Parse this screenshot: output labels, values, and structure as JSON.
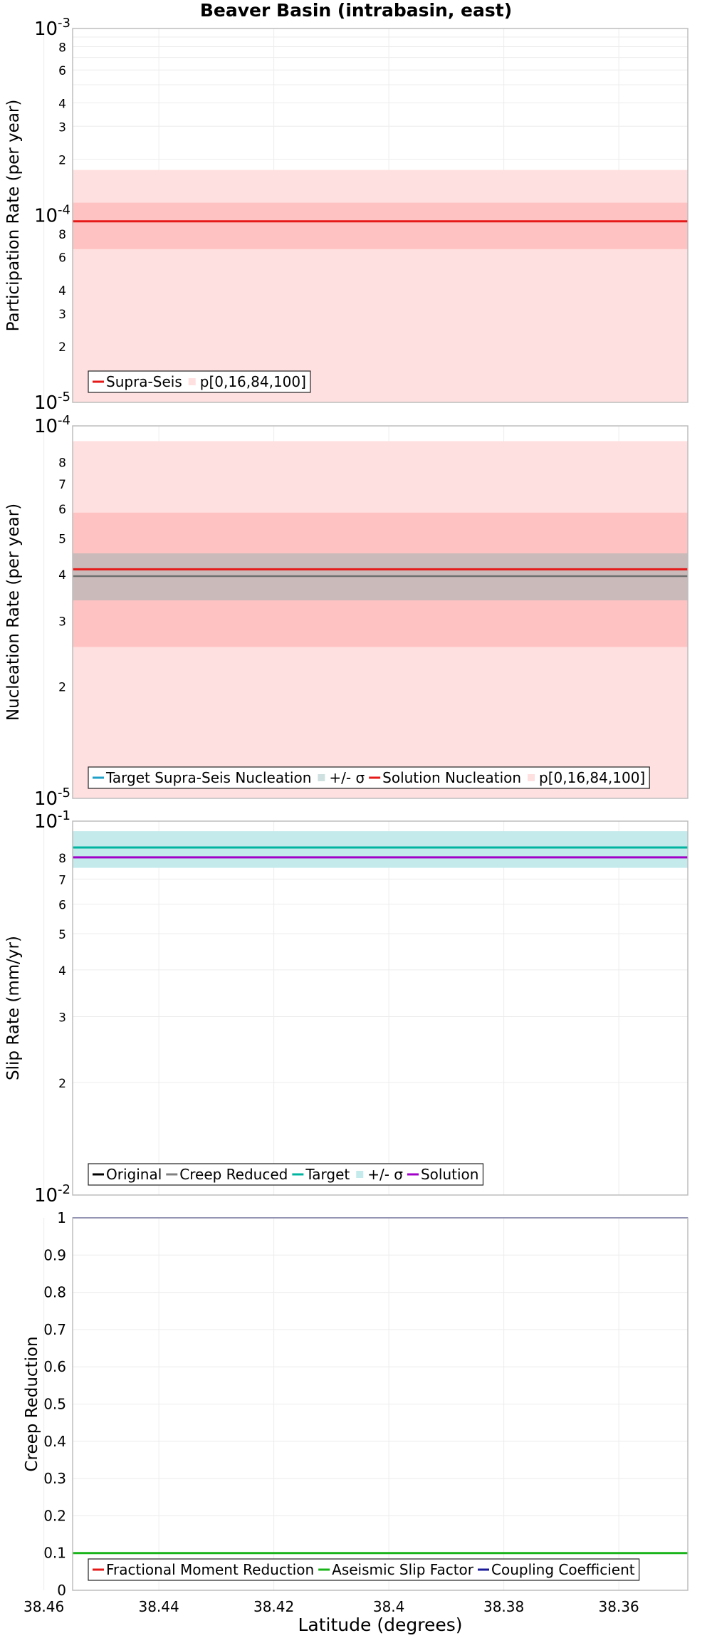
{
  "title": "Beaver Basin (intrabasin, east)",
  "colors": {
    "supra_seis": "#e61919",
    "band_outer": "#ffe0e0",
    "band_inner": "#ffc2c2",
    "target_nucleation": "#1ea0c8",
    "sigma_gray": "#a0b4b4",
    "creep_reduced": "#808080",
    "target_slip": "#00b4a0",
    "slip_sigma": "#c4eaec",
    "solution_slip": "#a000c8",
    "fractional_moment": "#e61919",
    "aseismic": "#19b419",
    "coupling": "#1a1a9a"
  },
  "chart_data": [
    {
      "type": "line",
      "ylabel": "Participation Rate (per year)",
      "yscale": "log",
      "ylim": [
        1e-05,
        0.001
      ],
      "xlim": [
        38.455,
        38.348
      ],
      "y_tick_labels": [
        "10^-5",
        "2",
        "3",
        "4",
        "6",
        "8",
        "10^-4",
        "2",
        "3",
        "4",
        "6",
        "8",
        "10^-3"
      ],
      "grid": true,
      "legend": [
        "Supra-Seis",
        "p[0,16,84,100]"
      ],
      "legend_position": "bottom-left",
      "series": [
        {
          "name": "Supra-Seis",
          "values": [
            9.3e-05,
            9.3e-05
          ]
        },
        {
          "name": "p[0,16,84,100]",
          "band_outer": [
            1e-05,
            0.000175
          ],
          "band_inner": [
            6.6e-05,
            0.000117
          ]
        }
      ]
    },
    {
      "type": "line",
      "ylabel": "Nucleation Rate (per year)",
      "yscale": "log",
      "ylim": [
        1e-05,
        0.0001
      ],
      "xlim": [
        38.455,
        38.348
      ],
      "y_tick_labels": [
        "10^-5",
        "2",
        "3",
        "4",
        "5",
        "6",
        "7",
        "8",
        "10^-4"
      ],
      "grid": true,
      "legend": [
        "Target Supra-Seis Nucleation",
        "+/- σ",
        "Solution Nucleation",
        "p[0,16,84,100]"
      ],
      "legend_position": "bottom-left",
      "series": [
        {
          "name": "Target Supra-Seis Nucleation",
          "values": [
            3.95e-05,
            3.95e-05
          ]
        },
        {
          "name": "+/- σ",
          "band": [
            3.4e-05,
            4.55e-05
          ]
        },
        {
          "name": "Solution Nucleation",
          "values": [
            4.12e-05,
            4.12e-05
          ]
        },
        {
          "name": "p[0,16,84,100]",
          "band_outer": [
            1e-05,
            9.1e-05
          ],
          "band_inner": [
            2.55e-05,
            5.85e-05
          ]
        }
      ]
    },
    {
      "type": "line",
      "ylabel": "Slip Rate (mm/yr)",
      "yscale": "log",
      "ylim": [
        0.01,
        0.1
      ],
      "xlim": [
        38.455,
        38.348
      ],
      "y_tick_labels": [
        "10^-2",
        "2",
        "3",
        "4",
        "5",
        "6",
        "7",
        "8",
        "10^-1"
      ],
      "grid": true,
      "legend": [
        "Original",
        "Creep Reduced",
        "Target",
        "+/- σ",
        "Solution"
      ],
      "legend_position": "bottom-left",
      "series": [
        {
          "name": "Target",
          "values": [
            0.085,
            0.085
          ]
        },
        {
          "name": "+/- σ",
          "band": [
            0.075,
            0.094
          ]
        },
        {
          "name": "Solution",
          "values": [
            0.08,
            0.08
          ]
        }
      ]
    },
    {
      "type": "line",
      "ylabel": "Creep Reduction",
      "xlabel": "Latitude (degrees)",
      "ylim": [
        0,
        1
      ],
      "xlim": [
        38.455,
        38.348
      ],
      "x_ticks": [
        38.46,
        38.44,
        38.42,
        38.4,
        38.38,
        38.36
      ],
      "x_tick_labels": [
        "38.46",
        "38.44",
        "38.42",
        "38.4",
        "38.38",
        "38.36"
      ],
      "y_ticks": [
        0,
        0.1,
        0.2,
        0.3,
        0.4,
        0.5,
        0.6,
        0.7,
        0.8,
        0.9,
        1
      ],
      "y_tick_labels": [
        "0",
        "0.1",
        "0.2",
        "0.3",
        "0.4",
        "0.5",
        "0.6",
        "0.7",
        "0.8",
        "0.9",
        "1"
      ],
      "grid": true,
      "legend": [
        "Fractional Moment Reduction",
        "Aseismic Slip Factor",
        "Coupling Coefficient"
      ],
      "legend_position": "bottom-left",
      "series": [
        {
          "name": "Aseismic Slip Factor",
          "values": [
            0.1,
            0.1
          ]
        },
        {
          "name": "Coupling Coefficient",
          "values": [
            1.0,
            1.0
          ]
        }
      ]
    }
  ]
}
